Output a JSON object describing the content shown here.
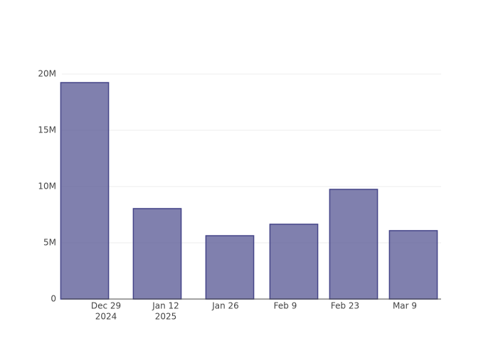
{
  "chart_data": {
    "type": "bar",
    "x": [
      "2024-12-24",
      "2025-01-10",
      "2025-01-27",
      "2025-02-11",
      "2025-02-25",
      "2025-03-11"
    ],
    "values": [
      19240000,
      8040000,
      5630000,
      6650000,
      9750000,
      6080000
    ],
    "color": "#444488",
    "xlim": [
      "2024-12-18T16:00:00Z",
      "2025-03-17T12:00:00Z"
    ],
    "xticks": [
      {
        "value": "2024-12-29",
        "label": "Dec 29",
        "year": "2024"
      },
      {
        "value": "2025-01-12",
        "label": "Jan 12",
        "year": "2025"
      },
      {
        "value": "2025-01-26",
        "label": "Jan 26"
      },
      {
        "value": "2025-02-09",
        "label": "Feb 9"
      },
      {
        "value": "2025-02-23",
        "label": "Feb 23"
      },
      {
        "value": "2025-03-09",
        "label": "Mar 9"
      }
    ],
    "ylim": [
      0,
      20000000
    ],
    "yticks": [
      0,
      {
        "value": 5000000,
        "label": "5M"
      },
      {
        "value": 10000000,
        "label": "10M"
      },
      {
        "value": 15000000,
        "label": "15M"
      },
      {
        "value": 20000000,
        "label": "20M"
      }
    ],
    "grid": true
  }
}
